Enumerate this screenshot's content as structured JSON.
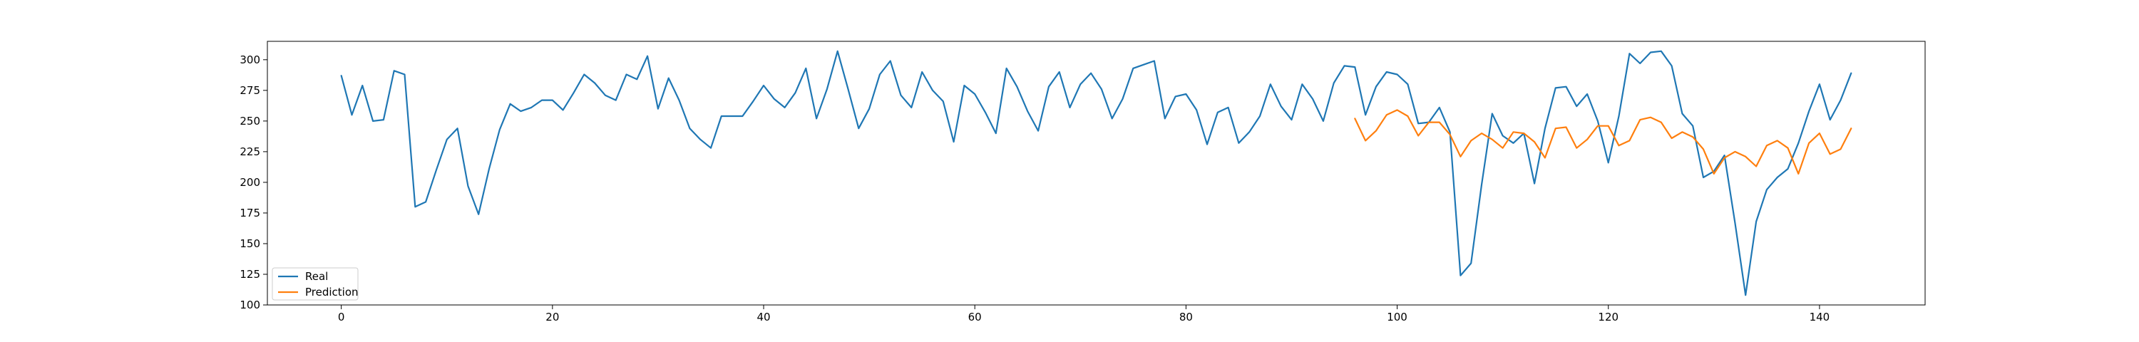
{
  "chart_data": {
    "type": "line",
    "title": "",
    "xlabel": "",
    "ylabel": "",
    "xlim": [
      -7,
      150
    ],
    "ylim": [
      100,
      315
    ],
    "x_ticks": [
      0,
      20,
      40,
      60,
      80,
      100,
      120,
      140
    ],
    "y_ticks": [
      100,
      125,
      150,
      175,
      200,
      225,
      250,
      275,
      300
    ],
    "grid": false,
    "legend_position": "lower-left",
    "series": [
      {
        "name": "Real",
        "color": "#1f77b4",
        "x_start": 0,
        "values": [
          287,
          255,
          279,
          250,
          251,
          291,
          288,
          180,
          184,
          210,
          235,
          244,
          197,
          174,
          211,
          243,
          264,
          258,
          261,
          267,
          267,
          259,
          273,
          288,
          281,
          271,
          267,
          288,
          284,
          303,
          260,
          285,
          267,
          244,
          235,
          228,
          254,
          254,
          254,
          266,
          279,
          268,
          261,
          273,
          293,
          252,
          276,
          307,
          276,
          244,
          260,
          288,
          299,
          271,
          261,
          290,
          275,
          266,
          233,
          279,
          272,
          257,
          240,
          293,
          278,
          258,
          242,
          278,
          290,
          261,
          280,
          289,
          276,
          252,
          268,
          293,
          296,
          299,
          252,
          270,
          272,
          259,
          231,
          257,
          261,
          232,
          241,
          254,
          280,
          262,
          251,
          280,
          268,
          250,
          281,
          295,
          294,
          255,
          278,
          290,
          288,
          280,
          248,
          249,
          261,
          241,
          124,
          134,
          198,
          256,
          238,
          232,
          240,
          199,
          244,
          277,
          278,
          262,
          272,
          250,
          216,
          254,
          305,
          297,
          306,
          307,
          295,
          256,
          246,
          204,
          209,
          222,
          167,
          108,
          168,
          194,
          204,
          211,
          232,
          258,
          280,
          251,
          267,
          289
        ]
      },
      {
        "name": "Prediction",
        "color": "#ff7f0e",
        "x_start": 96,
        "values": [
          252,
          234,
          242,
          255,
          259,
          254,
          238,
          249,
          249,
          239,
          221,
          234,
          240,
          235,
          228,
          241,
          240,
          233,
          220,
          244,
          245,
          228,
          235,
          246,
          246,
          230,
          234,
          251,
          253,
          249,
          236,
          241,
          237,
          227,
          207,
          220,
          225,
          221,
          213,
          230,
          234,
          228,
          207,
          232,
          240,
          223,
          227,
          244
        ]
      }
    ]
  }
}
